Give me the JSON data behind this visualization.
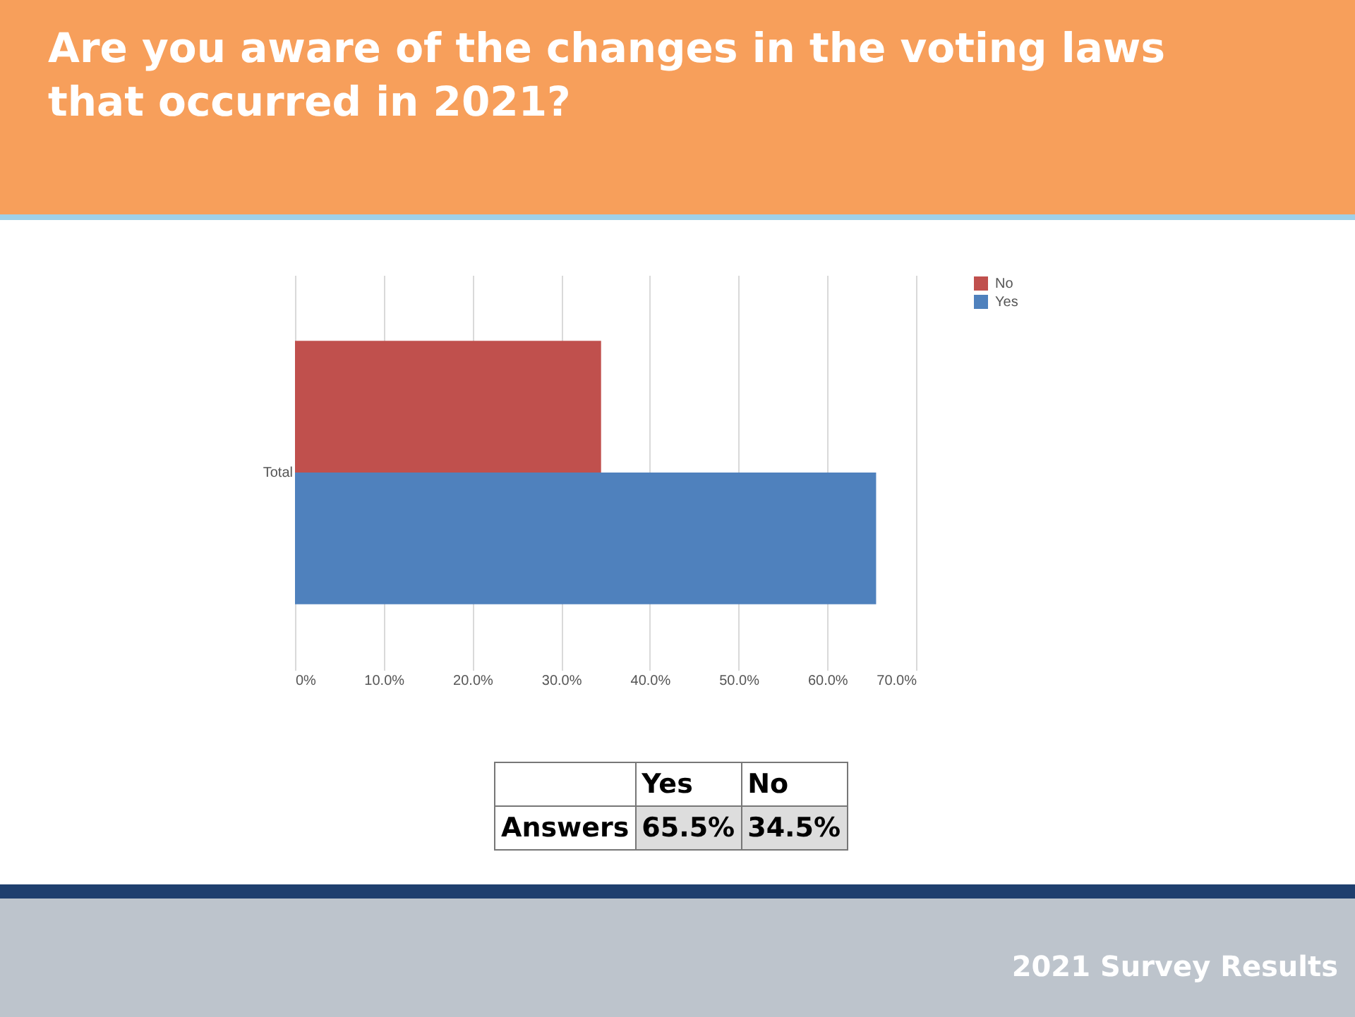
{
  "chart_data": {
    "type": "bar",
    "title": "Are you aware of the changes in the voting laws that occurred in 2021?",
    "orientation": "horizontal",
    "categories": [
      "Total"
    ],
    "series": [
      {
        "name": "Yes",
        "color": "#4f81bd",
        "values": [
          65.5
        ]
      },
      {
        "name": "No",
        "color": "#c0504d",
        "values": [
          34.5
        ]
      }
    ],
    "xlim": [
      0,
      70
    ],
    "xticks": [
      {
        "value": 0,
        "label": "0%"
      },
      {
        "value": 10,
        "label": "10.0%"
      },
      {
        "value": 20,
        "label": "20.0%"
      },
      {
        "value": 30,
        "label": "30.0%"
      },
      {
        "value": 40,
        "label": "40.0%"
      },
      {
        "value": 50,
        "label": "50.0%"
      },
      {
        "value": 60,
        "label": "60.0%"
      },
      {
        "value": 70,
        "label": "70.0%"
      }
    ],
    "grid": "x",
    "legend": "right",
    "annotations": [
      "Answers",
      "65.5%",
      "34.5%",
      "2021 Survey Results"
    ]
  }
}
